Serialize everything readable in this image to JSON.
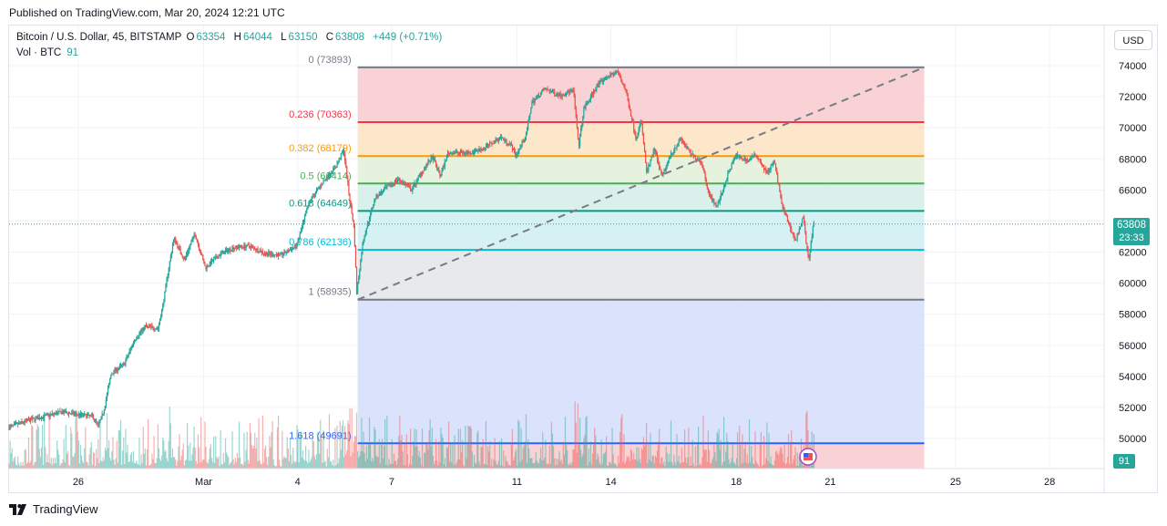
{
  "published": "Published on TradingView.com, Mar 20, 2024 12:21 UTC",
  "header": {
    "symbol": "Bitcoin / U.S. Dollar, 45, BITSTAMP",
    "o_label": "O",
    "o_value": "63354",
    "h_label": "H",
    "h_value": "64044",
    "l_label": "L",
    "l_value": "63150",
    "c_label": "C",
    "c_value": "63808",
    "change": "+449 (+0.71%)",
    "vol_label": "Vol · BTC",
    "vol_value": "91"
  },
  "currency_button": "USD",
  "last_price": {
    "price": "63808",
    "countdown": "23:33",
    "volume": "91"
  },
  "brand": "TradingView",
  "colors": {
    "up": "#26a69a",
    "down": "#ef5350",
    "accent": "#2962ff"
  },
  "chart_data": {
    "type": "candlestick",
    "title": "Bitcoin / U.S. Dollar, 45, BITSTAMP",
    "y_range": [
      48900,
      74900
    ],
    "y_ticks": [
      50000,
      52000,
      54000,
      56000,
      58000,
      60000,
      62000,
      64000,
      66000,
      68000,
      70000,
      72000,
      74000
    ],
    "y_tick_labels": [
      "50000",
      "52000",
      "54000",
      "56000",
      "58000",
      "60000",
      "62000",
      "64000",
      "66000",
      "68000",
      "70000",
      "72000",
      "74000"
    ],
    "x_ticks": [
      "26",
      "Mar",
      "4",
      "7",
      "11",
      "14",
      "18",
      "21",
      "25",
      "28"
    ],
    "x_tick_dates": [
      "2024-02-26",
      "2024-03-01",
      "2024-03-04",
      "2024-03-07",
      "2024-03-11",
      "2024-03-14",
      "2024-03-18",
      "2024-03-21",
      "2024-03-25",
      "2024-03-28"
    ],
    "x_range": [
      "2024-02-23T19:00",
      "2024-03-30T00:00"
    ],
    "last_price": 63808,
    "price_path": [
      [
        "2024-02-23T19:00",
        50700
      ],
      [
        "2024-02-24T12:00",
        51200
      ],
      [
        "2024-02-25T12:00",
        51700
      ],
      [
        "2024-02-26T12:00",
        51400
      ],
      [
        "2024-02-26T16:00",
        50800
      ],
      [
        "2024-02-26T20:00",
        51700
      ],
      [
        "2024-02-27T02:00",
        54200
      ],
      [
        "2024-02-27T12:00",
        54800
      ],
      [
        "2024-02-27T20:00",
        56400
      ],
      [
        "2024-02-28T04:00",
        57200
      ],
      [
        "2024-02-28T14:00",
        57100
      ],
      [
        "2024-02-28T18:00",
        58800
      ],
      [
        "2024-02-28T22:00",
        61000
      ],
      [
        "2024-02-29T02:00",
        62900
      ],
      [
        "2024-02-29T10:00",
        61500
      ],
      [
        "2024-02-29T18:00",
        63200
      ],
      [
        "2024-03-01T02:00",
        61000
      ],
      [
        "2024-03-01T14:00",
        61900
      ],
      [
        "2024-03-02T00:00",
        62300
      ],
      [
        "2024-03-02T12:00",
        62400
      ],
      [
        "2024-03-03T00:00",
        61900
      ],
      [
        "2024-03-03T12:00",
        61800
      ],
      [
        "2024-03-04T00:00",
        62400
      ],
      [
        "2024-03-04T10:00",
        65300
      ],
      [
        "2024-03-04T20:00",
        66500
      ],
      [
        "2024-03-05T06:00",
        67500
      ],
      [
        "2024-03-05T12:00",
        68600
      ],
      [
        "2024-03-05T16:00",
        65800
      ],
      [
        "2024-03-05T20:00",
        63500
      ],
      [
        "2024-03-05T22:00",
        59400
      ],
      [
        "2024-03-06T03:00",
        62800
      ],
      [
        "2024-03-06T12:00",
        65500
      ],
      [
        "2024-03-06T22:00",
        66200
      ],
      [
        "2024-03-07T06:00",
        66700
      ],
      [
        "2024-03-07T16:00",
        66000
      ],
      [
        "2024-03-08T00:00",
        67200
      ],
      [
        "2024-03-08T08:00",
        68100
      ],
      [
        "2024-03-08T14:00",
        66900
      ],
      [
        "2024-03-08T20:00",
        68400
      ],
      [
        "2024-03-09T12:00",
        68400
      ],
      [
        "2024-03-10T00:00",
        68700
      ],
      [
        "2024-03-10T12:00",
        69400
      ],
      [
        "2024-03-10T20:00",
        68900
      ],
      [
        "2024-03-11T00:00",
        68200
      ],
      [
        "2024-03-11T08:00",
        69600
      ],
      [
        "2024-03-11T12:00",
        71600
      ],
      [
        "2024-03-11T22:00",
        72500
      ],
      [
        "2024-03-12T10:00",
        72100
      ],
      [
        "2024-03-12T20:00",
        72400
      ],
      [
        "2024-03-13T00:00",
        68800
      ],
      [
        "2024-03-13T04:00",
        71200
      ],
      [
        "2024-03-13T14:00",
        72700
      ],
      [
        "2024-03-13T22:00",
        73300
      ],
      [
        "2024-03-14T06:00",
        73600
      ],
      [
        "2024-03-14T12:00",
        72400
      ],
      [
        "2024-03-14T20:00",
        69300
      ],
      [
        "2024-03-15T00:00",
        70500
      ],
      [
        "2024-03-15T04:00",
        67100
      ],
      [
        "2024-03-15T10:00",
        68600
      ],
      [
        "2024-03-15T16:00",
        66800
      ],
      [
        "2024-03-15T22:00",
        68200
      ],
      [
        "2024-03-16T06:00",
        69300
      ],
      [
        "2024-03-16T14:00",
        68300
      ],
      [
        "2024-03-16T22:00",
        67800
      ],
      [
        "2024-03-17T04:00",
        65700
      ],
      [
        "2024-03-17T10:00",
        64900
      ],
      [
        "2024-03-17T18:00",
        66900
      ],
      [
        "2024-03-18T00:00",
        68200
      ],
      [
        "2024-03-18T10:00",
        67900
      ],
      [
        "2024-03-18T16:00",
        68300
      ],
      [
        "2024-03-19T00:00",
        67100
      ],
      [
        "2024-03-19T06:00",
        67800
      ],
      [
        "2024-03-19T12:00",
        64900
      ],
      [
        "2024-03-19T22:00",
        62700
      ],
      [
        "2024-03-20T04:00",
        64300
      ],
      [
        "2024-03-20T08:00",
        61400
      ],
      [
        "2024-03-20T12:00",
        63808
      ]
    ],
    "fibonacci": {
      "anchor_low": {
        "date": "2024-03-05T22:00",
        "price": 58935
      },
      "anchor_high": {
        "date": "2024-03-24T00:00",
        "price": 73893
      },
      "extends_to": "2024-03-24T00:00",
      "levels": [
        {
          "ratio": "0",
          "price": 73893,
          "label": "0 (73893)",
          "color": "#787b86",
          "fill": "#f7cacd"
        },
        {
          "ratio": "0.236",
          "price": 70363,
          "label": "0.236 (70363)",
          "color": "#f23645",
          "fill": "#fde3c2"
        },
        {
          "ratio": "0.382",
          "price": 68179,
          "label": "0.382 (68179)",
          "color": "#ff9800",
          "fill": "#e3f0d8"
        },
        {
          "ratio": "0.5",
          "price": 66414,
          "label": "0.5 (66414)",
          "color": "#4caf50",
          "fill": "#d3ede6"
        },
        {
          "ratio": "0.618",
          "price": 64649,
          "label": "0.618 (64649)",
          "color": "#089981",
          "fill": "#cfeef2"
        },
        {
          "ratio": "0.786",
          "price": 62136,
          "label": "0.786 (62136)",
          "color": "#00bcd4",
          "fill": "#e4e5e8"
        },
        {
          "ratio": "1",
          "price": 58935,
          "label": "1 (58935)",
          "color": "#787b86",
          "fill": "#d4ddfb"
        },
        {
          "ratio": "1.618",
          "price": 49691,
          "label": "1.618 (49691)",
          "color": "#2962ff",
          "fill": "#f7cacd"
        }
      ]
    },
    "trend_line": {
      "from": {
        "date": "2024-03-05T22:00",
        "price": 58935
      },
      "to": {
        "date": "2024-03-24T00:00",
        "price": 73893
      },
      "style": "dashed"
    },
    "volume": {
      "label": "Vol · BTC",
      "last": 91
    },
    "grid": true,
    "legend": "top-left"
  }
}
